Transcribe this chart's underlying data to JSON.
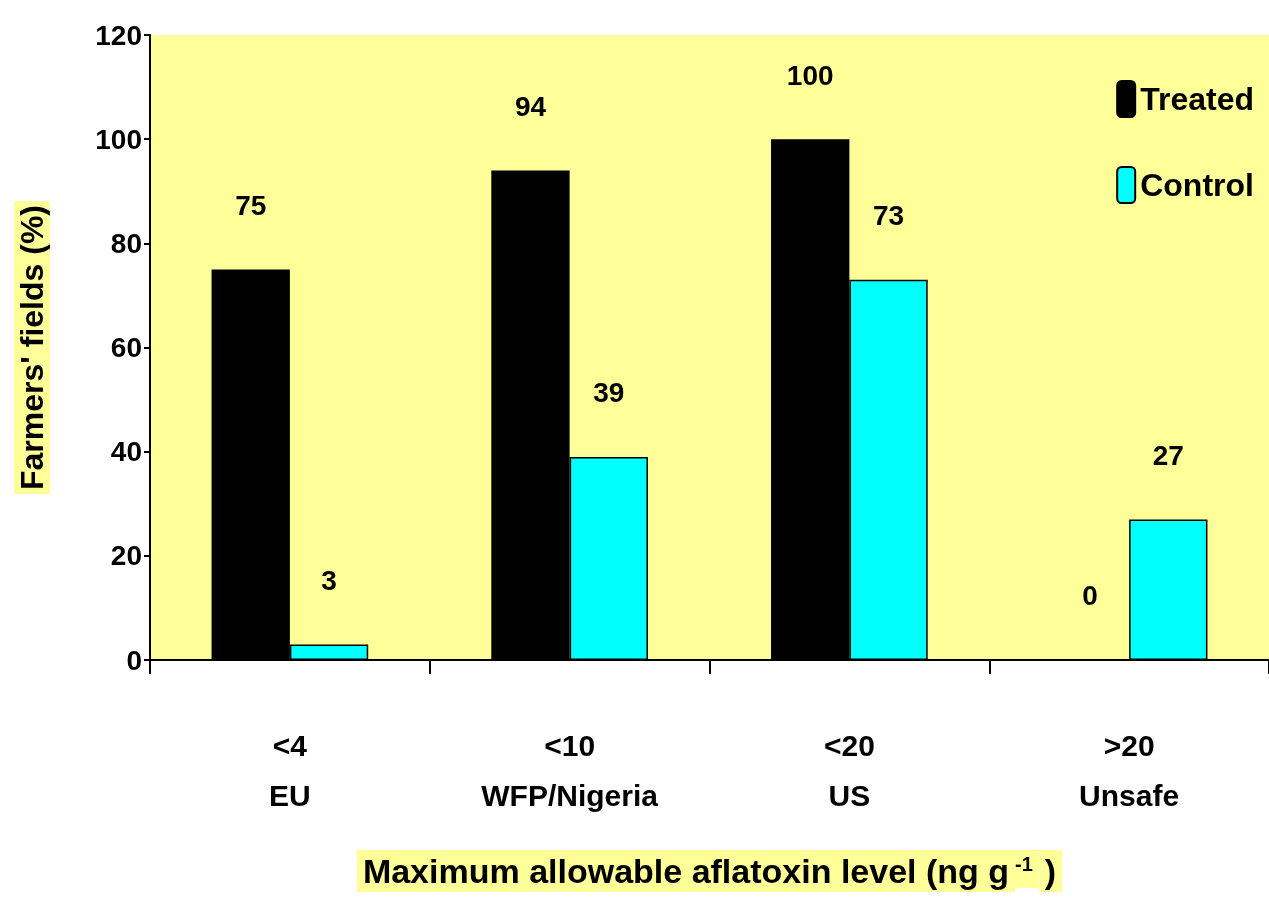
{
  "chart_data": {
    "type": "bar",
    "ylabel": "Farmers' fields (%)",
    "xlabel": "Maximum allowable aflatoxin level (ng g$^{-1}$)",
    "categories": [
      "<4\nEU",
      "<10\nWFP/Nigeria",
      "<20\nUS",
      ">20\nUnsafe"
    ],
    "series": [
      {
        "name": "Treated",
        "color": "#000000",
        "values": [
          75,
          94,
          100,
          0
        ]
      },
      {
        "name": "Control",
        "color": "#00ffff",
        "values": [
          3,
          39,
          73,
          27
        ]
      }
    ],
    "ylim": [
      0,
      120
    ],
    "yticks": [
      0,
      20,
      40,
      60,
      80,
      100,
      120
    ],
    "grid": false,
    "legend": "top right",
    "data_labels": true
  }
}
